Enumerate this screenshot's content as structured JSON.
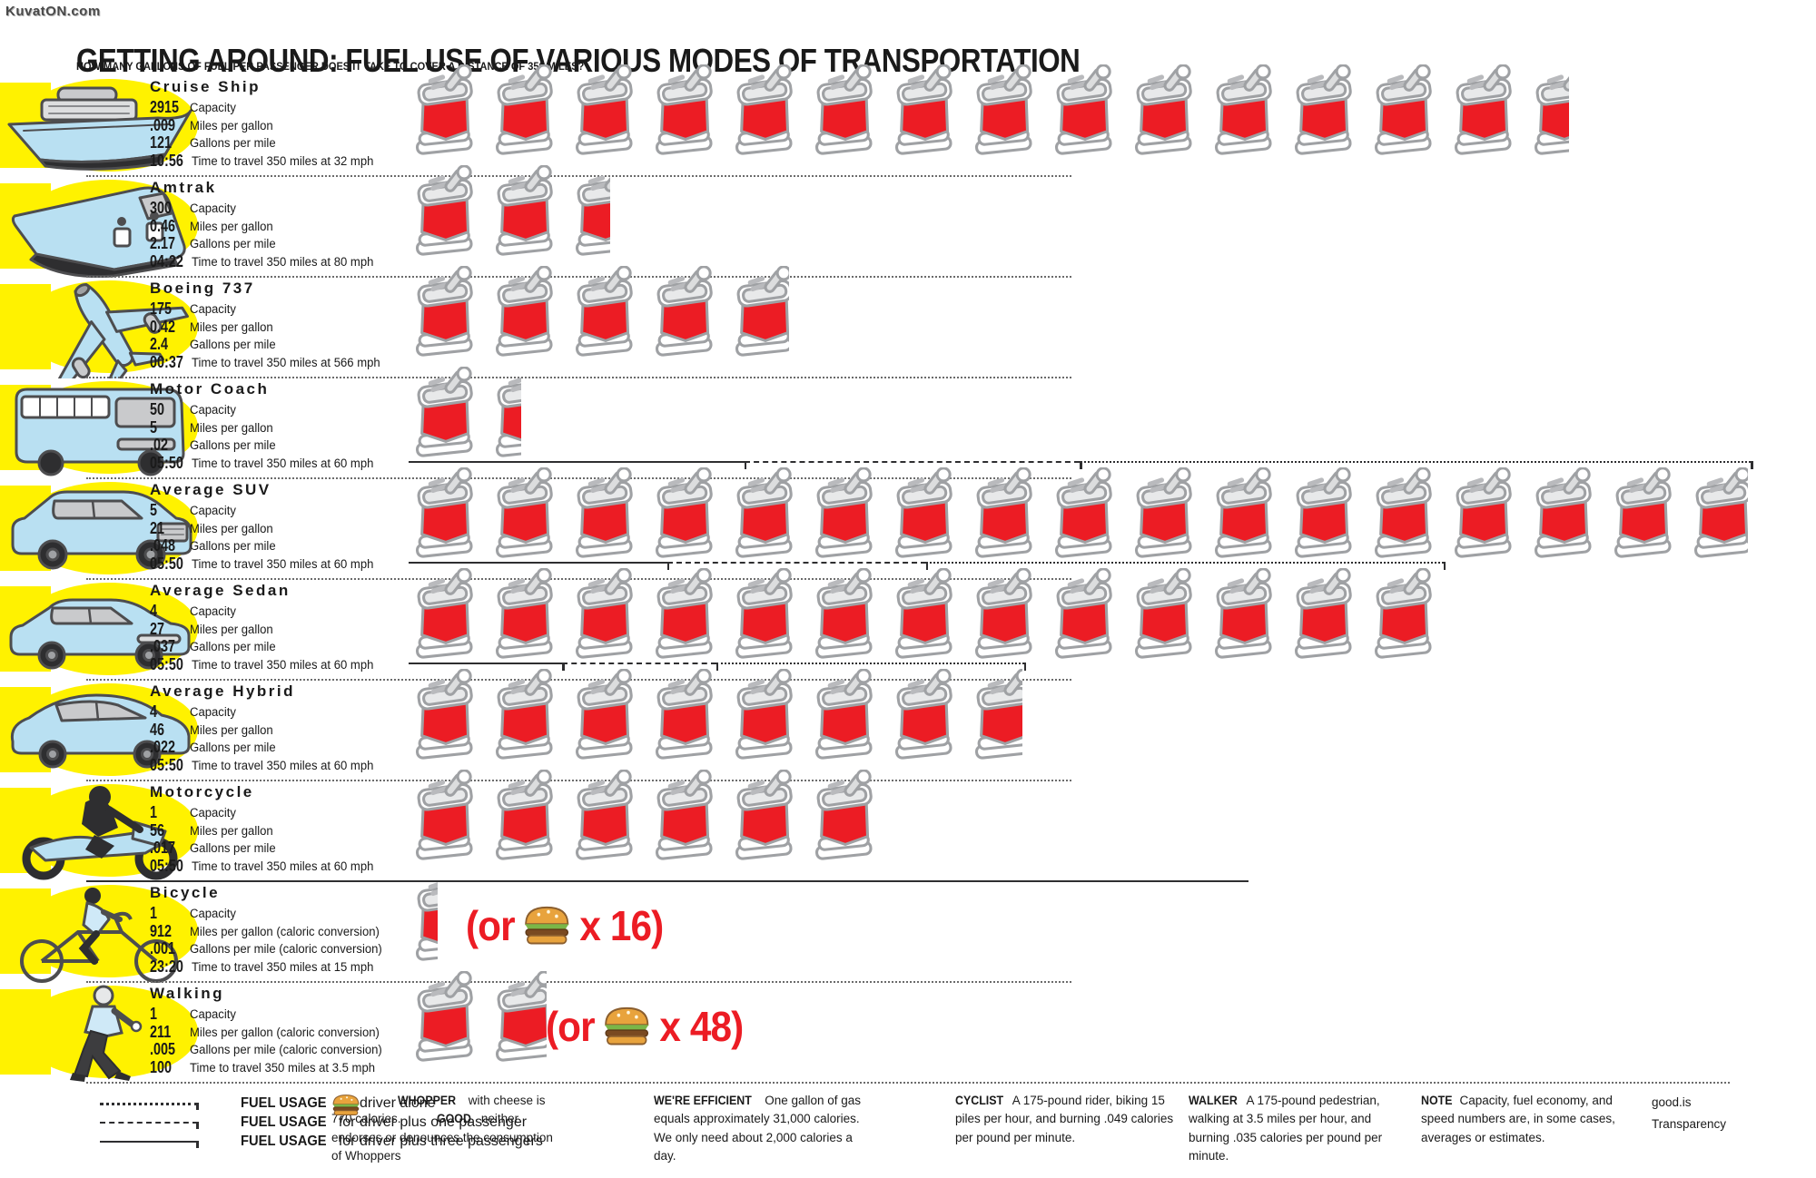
{
  "watermark": "KuvatON.com",
  "header": {
    "title": "GETTING AROUND: FUEL USE OF VARIOUS MODES OF TRANSPORTATION",
    "subtitle": "HOW MANY GALLONS OF FUEL PER PASSENGER DOES IT TAKE TO COVER A DISTANCE OF 350 MILES?"
  },
  "modes": [
    {
      "name": "Cruise Ship",
      "icon": "cruise-ship",
      "gallons_per_passenger_350mi": 14.53,
      "overlay": false,
      "stats": [
        {
          "value": "2915",
          "label": "Capacity"
        },
        {
          "value": ".009",
          "label": "Miles per gallon"
        },
        {
          "value": "121",
          "label": "Gallons per mile"
        },
        {
          "value": "10:56",
          "label": "Time to travel 350 miles at 32 mph"
        }
      ]
    },
    {
      "name": "Amtrak",
      "icon": "train",
      "gallons_per_passenger_350mi": 2.53,
      "overlay": false,
      "stats": [
        {
          "value": "300",
          "label": "Capacity"
        },
        {
          "value": "0.46",
          "label": "Miles per gallon"
        },
        {
          "value": "2.17",
          "label": "Gallons per mile"
        },
        {
          "value": "04:22",
          "label": "Time to travel 350 miles at 80 mph"
        }
      ]
    },
    {
      "name": "Boeing 737",
      "icon": "airplane",
      "gallons_per_passenger_350mi": 4.8,
      "overlay": false,
      "stats": [
        {
          "value": "175",
          "label": "Capacity"
        },
        {
          "value": "0.42",
          "label": "Miles per gallon"
        },
        {
          "value": "2.4",
          "label": "Gallons per mile"
        },
        {
          "value": "00:37",
          "label": "Time to travel 350 miles at 566 mph"
        }
      ]
    },
    {
      "name": "Motor Coach",
      "icon": "bus",
      "gallons_per_passenger_350mi": 1.4,
      "overlay": false,
      "stats": [
        {
          "value": "50",
          "label": "Capacity"
        },
        {
          "value": "5",
          "label": "Miles per gallon"
        },
        {
          "value": ".02",
          "label": "Gallons per mile"
        },
        {
          "value": "05:50",
          "label": "Time to travel 350 miles at 60 mph"
        }
      ]
    },
    {
      "name": "Average SUV",
      "icon": "suv",
      "gallons_per_passenger_350mi": 16.8,
      "overlay": true,
      "stats": [
        {
          "value": "5",
          "label": "Capacity"
        },
        {
          "value": "21",
          "label": "Miles per gallon"
        },
        {
          "value": ".048",
          "label": "Gallons per mile"
        },
        {
          "value": "05:50",
          "label": "Time to travel 350 miles at 60 mph"
        }
      ]
    },
    {
      "name": "Average Sedan",
      "icon": "sedan",
      "gallons_per_passenger_350mi": 12.95,
      "overlay": true,
      "stats": [
        {
          "value": "4",
          "label": "Capacity"
        },
        {
          "value": "27",
          "label": "Miles per gallon"
        },
        {
          "value": ".037",
          "label": "Gallons per mile"
        },
        {
          "value": "05:50",
          "label": "Time to travel 350 miles at 60 mph"
        }
      ]
    },
    {
      "name": "Average Hybrid",
      "icon": "hybrid",
      "gallons_per_passenger_350mi": 7.7,
      "overlay": true,
      "stats": [
        {
          "value": "4",
          "label": "Capacity"
        },
        {
          "value": "46",
          "label": "Miles per gallon"
        },
        {
          "value": ".022",
          "label": "Gallons per mile"
        },
        {
          "value": "05:50",
          "label": "Time to travel 350 miles at 60 mph"
        }
      ]
    },
    {
      "name": "Motorcycle",
      "icon": "motorcycle",
      "gallons_per_passenger_350mi": 5.95,
      "overlay": false,
      "stats": [
        {
          "value": "1",
          "label": "Capacity"
        },
        {
          "value": "56",
          "label": "Miles per gallon"
        },
        {
          "value": ".017",
          "label": "Gallons per mile"
        },
        {
          "value": "05:50",
          "label": "Time to travel 350 miles at 60 mph"
        }
      ]
    },
    {
      "name": "Bicycle",
      "icon": "bicycle",
      "gallons_per_passenger_350mi": 0.35,
      "overlay": false,
      "burger": {
        "pre": "(or",
        "post": "x 16)",
        "count": 16
      },
      "stats": [
        {
          "value": "1",
          "label": "Capacity"
        },
        {
          "value": "912",
          "label": "Miles per gallon (caloric conversion)"
        },
        {
          "value": ".001",
          "label": "Gallons per mile (caloric conversion)"
        },
        {
          "value": "23:20",
          "label": "Time to travel 350 miles at 15 mph"
        }
      ]
    },
    {
      "name": "Walking",
      "icon": "pedestrian",
      "gallons_per_passenger_350mi": 1.75,
      "overlay": false,
      "burger": {
        "pre": "(or",
        "post": "x 48)",
        "count": 48
      },
      "stats": [
        {
          "value": "1",
          "label": "Capacity"
        },
        {
          "value": "211",
          "label": "Miles per gallon (caloric conversion)"
        },
        {
          "value": ".005",
          "label": "Gallons per mile (caloric conversion)"
        },
        {
          "value": "100",
          "label": "Time to travel 350 miles at 3.5 mph"
        }
      ]
    }
  ],
  "footer": {
    "fuel_legend": [
      {
        "line": "dotted",
        "bold": "FUEL USAGE",
        "rest": "for driver alone"
      },
      {
        "line": "dashed",
        "bold": "FUEL USAGE",
        "rest": "for driver plus one passenger"
      },
      {
        "line": "solid",
        "bold": "FUEL USAGE",
        "rest": "for driver plus three passengers"
      }
    ],
    "notes": [
      {
        "icon": "burger",
        "parts": [
          {
            "b": "WHOPPER"
          },
          {
            "t": "with cheese is 770 calories."
          },
          {
            "b": "GOOD"
          },
          {
            "t": "neither endorses or denounces the consumption of Whoppers"
          }
        ]
      },
      {
        "parts": [
          {
            "b": "WE'RE EFFICIENT"
          },
          {
            "t": "One gallon of gas equals approximately 31,000 calories. We only need about 2,000 calories a day."
          }
        ]
      },
      {
        "parts": [
          {
            "b": "CYCLIST"
          },
          {
            "t": "A 175-pound rider, biking 15 piles per hour, and burning .049 calories per pound per minute."
          }
        ]
      },
      {
        "parts": [
          {
            "b": "WALKER"
          },
          {
            "t": "A 175-pound pedestrian, walking at 3.5 miles per hour, and burning .035 calories per pound per minute."
          }
        ]
      },
      {
        "parts": [
          {
            "b": "NOTE"
          },
          {
            "t": "Capacity, fuel economy, and speed numbers are, in some cases, averages or estimates."
          }
        ]
      }
    ],
    "credits": [
      "good.is",
      "Transparency"
    ]
  },
  "colors": {
    "yellow": "#fff200",
    "can_red": "#ec1c24",
    "can_gray": "#9fa1a4",
    "vehicle_blue": "#b9e0f2",
    "outline": "#4d4d4f"
  },
  "chart_data": {
    "type": "bar",
    "variant": "pictogram (1 gas can = 1 gallon of fuel per passenger)",
    "title": "GETTING AROUND: FUEL USE OF VARIOUS MODES OF TRANSPORTATION",
    "subtitle": "HOW MANY GALLONS OF FUEL PER PASSENGER DOES IT TAKE TO COVER A DISTANCE OF 350 MILES?",
    "categories": [
      "Cruise Ship",
      "Amtrak",
      "Boeing 737",
      "Motor Coach",
      "Average SUV",
      "Average Sedan",
      "Average Hybrid",
      "Motorcycle",
      "Bicycle",
      "Walking"
    ],
    "values": [
      14.53,
      2.53,
      4.8,
      1.4,
      16.8,
      12.95,
      7.7,
      5.95,
      0.35,
      1.75
    ],
    "unit": "gallons of fuel per passenger over 350 miles",
    "series": [
      {
        "name": "Capacity",
        "values": [
          2915,
          300,
          175,
          50,
          5,
          4,
          4,
          1,
          1,
          1
        ]
      },
      {
        "name": "Miles per gallon",
        "values": [
          0.009,
          0.46,
          0.42,
          5,
          21,
          27,
          46,
          56,
          912,
          211
        ]
      },
      {
        "name": "Gallons per mile",
        "values": [
          121,
          2.17,
          2.4,
          0.02,
          0.048,
          0.037,
          0.022,
          0.017,
          0.001,
          0.005
        ]
      },
      {
        "name": "Time to travel 350 miles",
        "values": [
          "10:56",
          "04:22",
          "00:37",
          "05:50",
          "05:50",
          "05:50",
          "05:50",
          "05:50",
          "23:20",
          "100"
        ]
      }
    ],
    "annotations": [
      "Bicycle fuel equals (or burger x 16)",
      "Walking fuel equals (or burger x 48)"
    ],
    "legend_position": "bottom",
    "grid": false
  }
}
